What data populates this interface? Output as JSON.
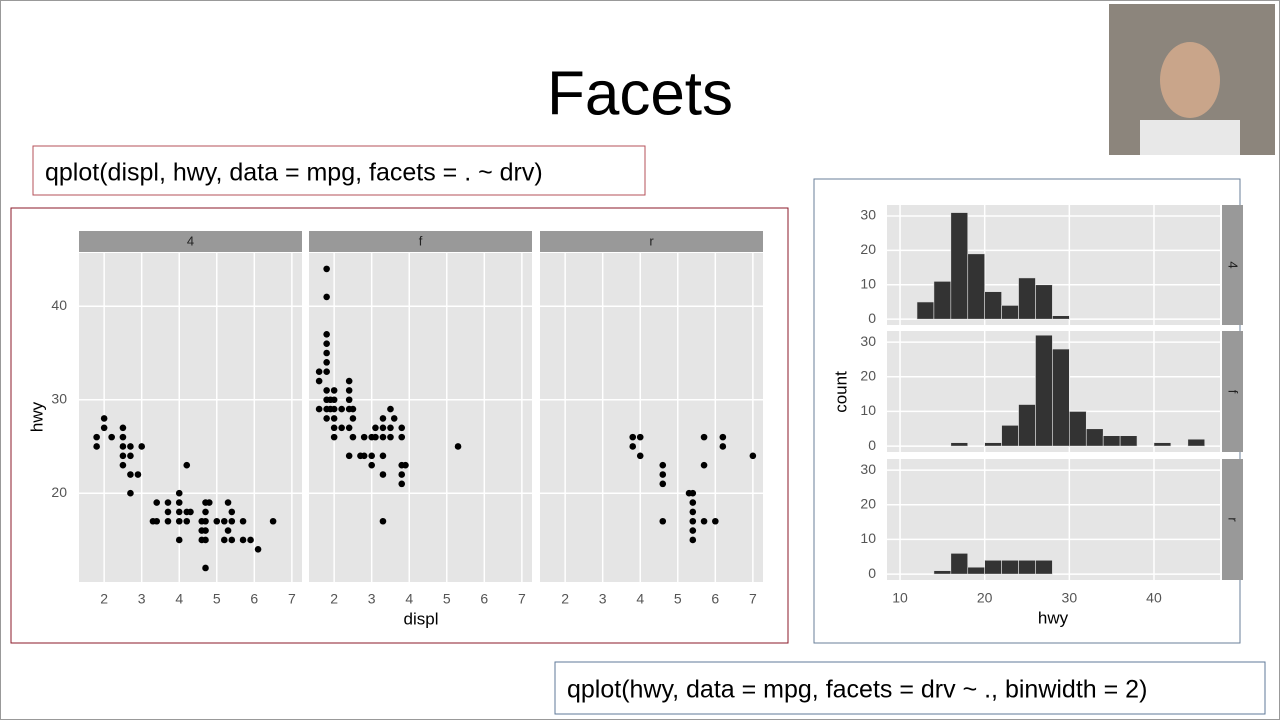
{
  "title": "Facets",
  "code_top": "qplot(displ, hwy, data = mpg, facets = . ~ drv)",
  "code_bottom": "qplot(hwy, data = mpg, facets = drv ~ ., binwidth = 2)",
  "chart_data": [
    {
      "type": "scatter",
      "xlabel": "displ",
      "ylabel": "hwy",
      "color": "#000000",
      "xlim": [
        1.33,
        7.27
      ],
      "ylim": [
        10.5,
        45.7
      ],
      "xticks": [
        2,
        3,
        4,
        5,
        6,
        7
      ],
      "yticks": [
        20,
        30,
        40
      ],
      "grid": true,
      "facets": [
        {
          "label": "4",
          "x": [
            1.8,
            1.8,
            2.0,
            2.0,
            2.2,
            2.5,
            2.5,
            2.5,
            2.5,
            2.5,
            2.7,
            2.7,
            2.7,
            2.7,
            2.9,
            3.0,
            3.3,
            3.4,
            3.4,
            3.7,
            3.7,
            3.7,
            4.0,
            4.0,
            4.0,
            4.0,
            4.0,
            4.2,
            4.2,
            4.2,
            4.3,
            4.6,
            4.6,
            4.6,
            4.7,
            4.7,
            4.7,
            4.7,
            4.7,
            4.7,
            4.8,
            5.0,
            5.2,
            5.2,
            5.3,
            5.3,
            5.4,
            5.4,
            5.4,
            5.7,
            5.7,
            5.9,
            6.1,
            6.5
          ],
          "y": [
            26,
            25,
            28,
            27,
            26,
            27,
            26,
            25,
            24,
            23,
            25,
            24,
            22,
            20,
            22,
            25,
            17,
            19,
            17,
            19,
            18,
            17,
            20,
            19,
            18,
            17,
            15,
            23,
            18,
            17,
            18,
            17,
            16,
            15,
            19,
            18,
            17,
            16,
            15,
            12,
            19,
            17,
            17,
            15,
            19,
            16,
            18,
            17,
            15,
            17,
            15,
            15,
            14,
            17
          ]
        },
        {
          "label": "f",
          "x": [
            1.6,
            1.6,
            1.6,
            1.8,
            1.8,
            1.8,
            1.8,
            1.8,
            1.8,
            1.8,
            1.8,
            1.8,
            1.8,
            1.8,
            1.9,
            1.9,
            2.0,
            2.0,
            2.0,
            2.0,
            2.0,
            2.0,
            2.2,
            2.2,
            2.4,
            2.4,
            2.4,
            2.4,
            2.4,
            2.4,
            2.5,
            2.5,
            2.5,
            2.7,
            2.8,
            2.8,
            3.0,
            3.0,
            3.0,
            3.1,
            3.1,
            3.3,
            3.3,
            3.3,
            3.3,
            3.3,
            3.3,
            3.5,
            3.5,
            3.5,
            3.6,
            3.8,
            3.8,
            3.8,
            3.8,
            3.8,
            3.9,
            5.3
          ],
          "y": [
            33,
            32,
            29,
            44,
            41,
            37,
            36,
            35,
            34,
            33,
            31,
            30,
            29,
            28,
            30,
            29,
            31,
            30,
            29,
            28,
            27,
            26,
            29,
            27,
            32,
            31,
            30,
            29,
            27,
            24,
            29,
            28,
            26,
            24,
            26,
            24,
            26,
            24,
            23,
            27,
            26,
            28,
            27,
            26,
            24,
            22,
            17,
            29,
            27,
            26,
            28,
            27,
            26,
            23,
            22,
            21,
            23,
            25
          ]
        },
        {
          "label": "r",
          "x": [
            3.8,
            3.8,
            4.0,
            4.0,
            4.6,
            4.6,
            4.6,
            4.6,
            5.3,
            5.4,
            5.4,
            5.4,
            5.4,
            5.4,
            5.4,
            5.7,
            5.7,
            5.7,
            6.0,
            6.2,
            6.2,
            7.0
          ],
          "y": [
            26,
            25,
            26,
            24,
            23,
            22,
            21,
            17,
            20,
            20,
            19,
            18,
            17,
            16,
            15,
            26,
            23,
            17,
            17,
            26,
            25,
            24
          ]
        }
      ]
    },
    {
      "type": "histogram",
      "xlabel": "hwy",
      "ylabel": "count",
      "color": "#333333",
      "xlim": [
        8.46,
        47.8
      ],
      "ylim": [
        -1.7,
        33.2
      ],
      "xticks": [
        10,
        20,
        30,
        40
      ],
      "yticks": [
        0,
        10,
        20,
        30
      ],
      "grid": true,
      "bins": [
        12,
        14,
        16,
        18,
        20,
        22,
        24,
        26,
        28,
        30,
        32,
        34,
        36,
        38,
        40,
        42,
        44,
        46
      ],
      "facets": [
        {
          "label": "4",
          "counts": [
            5,
            11,
            31,
            19,
            8,
            4,
            12,
            10,
            1,
            0,
            0,
            0,
            0,
            0,
            0,
            0,
            0
          ]
        },
        {
          "label": "f",
          "counts": [
            0,
            0,
            1,
            0,
            1,
            6,
            12,
            32,
            28,
            10,
            5,
            3,
            3,
            0,
            1,
            0,
            2
          ]
        },
        {
          "label": "r",
          "counts": [
            0,
            1,
            6,
            2,
            4,
            4,
            4,
            4,
            0,
            0,
            0,
            0,
            0,
            0,
            0,
            0,
            0
          ]
        }
      ]
    }
  ]
}
